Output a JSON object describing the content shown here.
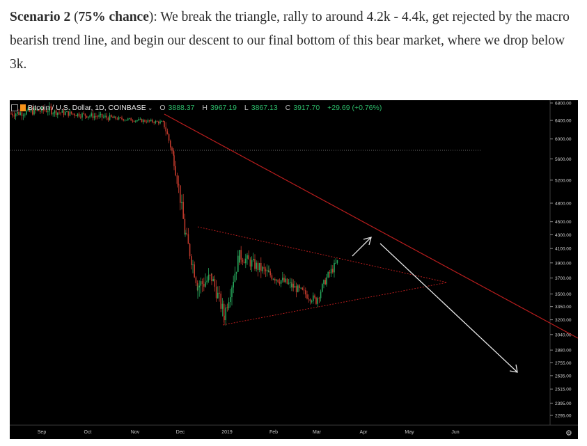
{
  "article": {
    "bold_lead": "Scenario 2",
    "paren_open": " (",
    "bold_chance": "75% chance",
    "paren_close": "):",
    "body": " We break the triangle, rally to around 4.2k - 4.4k, get rejected by the macro bearish trend line, and begin our descent to our final bottom of this bear market, where we drop below 3k."
  },
  "legend": {
    "symbol": "Bitcoin / U.S. Dollar, 1D, COINBASE",
    "caret": "⌄",
    "o_key": "O",
    "o_val": "3888.37",
    "h_key": "H",
    "h_val": "3967.19",
    "l_key": "L",
    "l_val": "3867.13",
    "c_key": "C",
    "c_val": "3917.70",
    "change": "+29.69 (+0.76%)"
  },
  "colors": {
    "up": "#26a65b",
    "down": "#c0392b",
    "trend": "#b81d1d",
    "arrow": "#e6e6e6",
    "background": "#000000"
  },
  "icons": {
    "settings": "gear-icon",
    "expand": "square-icon",
    "coin": "bitcoin-icon"
  },
  "chart_data": {
    "type": "candlestick",
    "title": "Bitcoin / U.S. Dollar, 1D, COINBASE",
    "x_ticks": [
      "Sep",
      "Oct",
      "Nov",
      "Dec",
      "2019",
      "Feb",
      "Mar",
      "Apr",
      "May",
      "Jun"
    ],
    "price_ticks": [
      "6800.00",
      "6400.00",
      "6000.00",
      "5600.00",
      "5200.00",
      "4800.00",
      "4500.00",
      "4300.00",
      "4100.00",
      "3900.00",
      "3700.00",
      "3500.00",
      "3350.00",
      "3200.00",
      "3040.00",
      "2880.00",
      "2755.00",
      "2635.00",
      "2515.00",
      "2395.00",
      "2295.00"
    ],
    "y_scale": "log",
    "last_close": 3917.7,
    "annotations": [
      "macro bearish trend line",
      "descending triangle upper line",
      "ascending triangle lower line",
      "arrow up to trend line",
      "arrow down below 3k"
    ]
  }
}
